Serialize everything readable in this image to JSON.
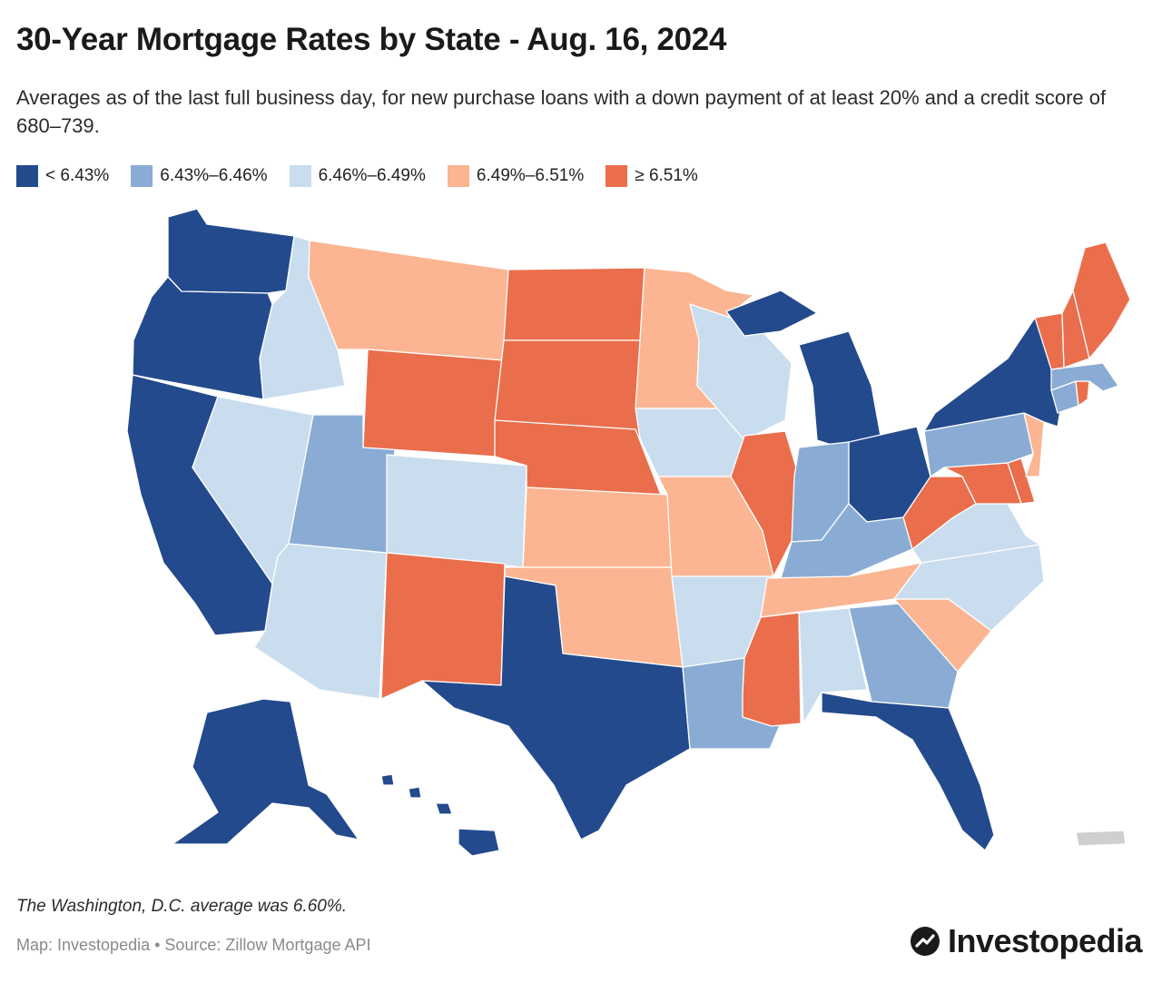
{
  "header": {
    "title": "30-Year Mortgage Rates by State - Aug. 16, 2024",
    "subtitle": "Averages as of the last full business day, for new purchase loans with a down payment of at least 20% and a credit score of 680–739."
  },
  "legend": [
    {
      "label": "< 6.43%",
      "color": "#234a8c"
    },
    {
      "label": "6.43%–6.46%",
      "color": "#8aacd4"
    },
    {
      "label": "6.46%–6.49%",
      "color": "#c9ddee"
    },
    {
      "label": "6.49%–6.51%",
      "color": "#fbb592"
    },
    {
      "label": "≥ 6.51%",
      "color": "#ea6e4c"
    }
  ],
  "map": {
    "states": [
      {
        "state": "WA",
        "class": 0
      },
      {
        "state": "OR",
        "class": 0
      },
      {
        "state": "CA",
        "class": 0
      },
      {
        "state": "ID",
        "class": 2
      },
      {
        "state": "NV",
        "class": 2
      },
      {
        "state": "AZ",
        "class": 2
      },
      {
        "state": "UT",
        "class": 1
      },
      {
        "state": "MT",
        "class": 3
      },
      {
        "state": "WY",
        "class": 4
      },
      {
        "state": "CO",
        "class": 2
      },
      {
        "state": "NM",
        "class": 4
      },
      {
        "state": "ND",
        "class": 4
      },
      {
        "state": "SD",
        "class": 4
      },
      {
        "state": "NE",
        "class": 4
      },
      {
        "state": "KS",
        "class": 3
      },
      {
        "state": "OK",
        "class": 3
      },
      {
        "state": "TX",
        "class": 0
      },
      {
        "state": "MN",
        "class": 3
      },
      {
        "state": "IA",
        "class": 2
      },
      {
        "state": "MO",
        "class": 3
      },
      {
        "state": "AR",
        "class": 2
      },
      {
        "state": "LA",
        "class": 1
      },
      {
        "state": "WI",
        "class": 2
      },
      {
        "state": "IL",
        "class": 4
      },
      {
        "state": "MI",
        "class": 0
      },
      {
        "state": "IN",
        "class": 1
      },
      {
        "state": "OH",
        "class": 0
      },
      {
        "state": "KY",
        "class": 1
      },
      {
        "state": "TN",
        "class": 3
      },
      {
        "state": "MS",
        "class": 4
      },
      {
        "state": "AL",
        "class": 2
      },
      {
        "state": "GA",
        "class": 1
      },
      {
        "state": "FL",
        "class": 0
      },
      {
        "state": "SC",
        "class": 3
      },
      {
        "state": "NC",
        "class": 2
      },
      {
        "state": "VA",
        "class": 2
      },
      {
        "state": "WV",
        "class": 4
      },
      {
        "state": "MD",
        "class": 4
      },
      {
        "state": "DE",
        "class": 4
      },
      {
        "state": "PA",
        "class": 1
      },
      {
        "state": "NJ",
        "class": 3
      },
      {
        "state": "NY",
        "class": 0
      },
      {
        "state": "CT",
        "class": 1
      },
      {
        "state": "RI",
        "class": 4
      },
      {
        "state": "MA",
        "class": 1
      },
      {
        "state": "VT",
        "class": 4
      },
      {
        "state": "NH",
        "class": 4
      },
      {
        "state": "ME",
        "class": 4
      },
      {
        "state": "AK",
        "class": 0
      },
      {
        "state": "HI",
        "class": 0
      },
      {
        "state": "PR",
        "class": -1
      }
    ],
    "no_data_color": "#cfcfcf",
    "border_color": "#ffffff"
  },
  "footer": {
    "note": "The Washington, D.C. average was 6.60%.",
    "credit": "Map: Investopedia • Source: Zillow Mortgage API",
    "brand": "Investopedia"
  }
}
